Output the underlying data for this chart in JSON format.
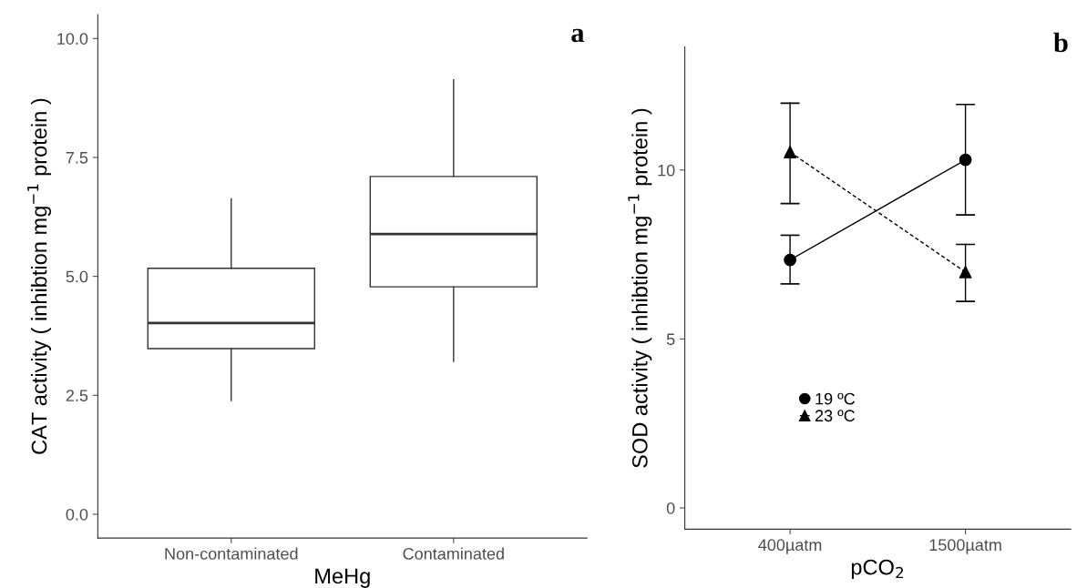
{
  "chart_data": [
    {
      "type": "box",
      "xlabel": "MeHg",
      "ylabel": "CAT activity ( inhibtion mg$^{−1}$ protein )",
      "annotations": [
        "a"
      ],
      "categories": [
        "Non-contaminated",
        "Contaminated"
      ],
      "boxes": [
        {
          "low": 2.39,
          "q1": 3.48,
          "median": 4.02,
          "q3": 5.17,
          "high": 6.63
        },
        {
          "low": 3.21,
          "q1": 4.78,
          "median": 5.89,
          "q3": 7.1,
          "high": 9.13
        }
      ],
      "color": "#ffffff",
      "ylim": [
        -0.5,
        10.5
      ],
      "yticks": [
        {
          "value": 0,
          "label": "0.0"
        },
        {
          "value": 2.5,
          "label": "2.5"
        },
        {
          "value": 5,
          "label": "5.0"
        },
        {
          "value": 7.5,
          "label": "7.5"
        },
        {
          "value": 10,
          "label": "10.0"
        }
      ],
      "grid": false
    },
    {
      "type": "line",
      "xlabel": "pCO$_{2}$",
      "ylabel": "SOD activity ( inhibtion mg$^{−1}$ protein )",
      "annotations": [
        "b"
      ],
      "categories": [
        "400µatm",
        "1500µatm"
      ],
      "series": [
        {
          "name": "19 ºC",
          "color": "#000000",
          "values": [
            7.34,
            10.3
          ],
          "errors": [
            [
              6.63,
              8.07
            ],
            [
              8.67,
              11.94
            ]
          ],
          "marker": "circle",
          "line_style": "solid"
        },
        {
          "name": "23 ºC",
          "color": "#000000",
          "values": [
            10.53,
            6.98
          ],
          "errors": [
            [
              9.01,
              11.98
            ],
            [
              6.11,
              7.8
            ]
          ],
          "marker": "triangle",
          "line_style": "dashed"
        }
      ],
      "ylim": [
        -0.63,
        13.64
      ],
      "yticks": [
        0,
        5,
        10
      ],
      "grid": false,
      "legend": "center"
    }
  ]
}
